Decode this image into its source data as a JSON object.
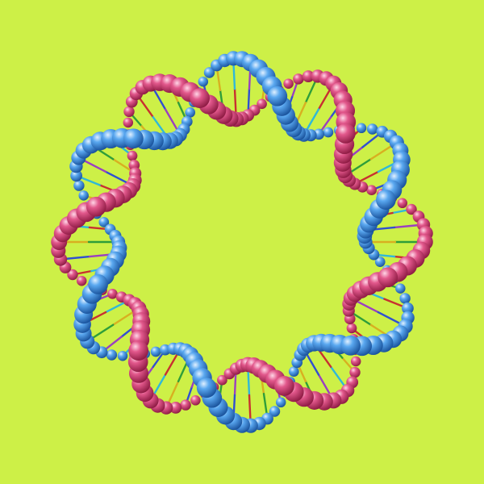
{
  "scene": {
    "subject": "dna-double-helix-ring",
    "background_color": "#cdf047",
    "strand_a_color": "#d8457a",
    "strand_b_color": "#4a9be8",
    "rung_colors": [
      "#2f9e3a",
      "#c83030",
      "#3050d0",
      "#d8b020",
      "#30b8d8",
      "#9a40c0"
    ]
  }
}
